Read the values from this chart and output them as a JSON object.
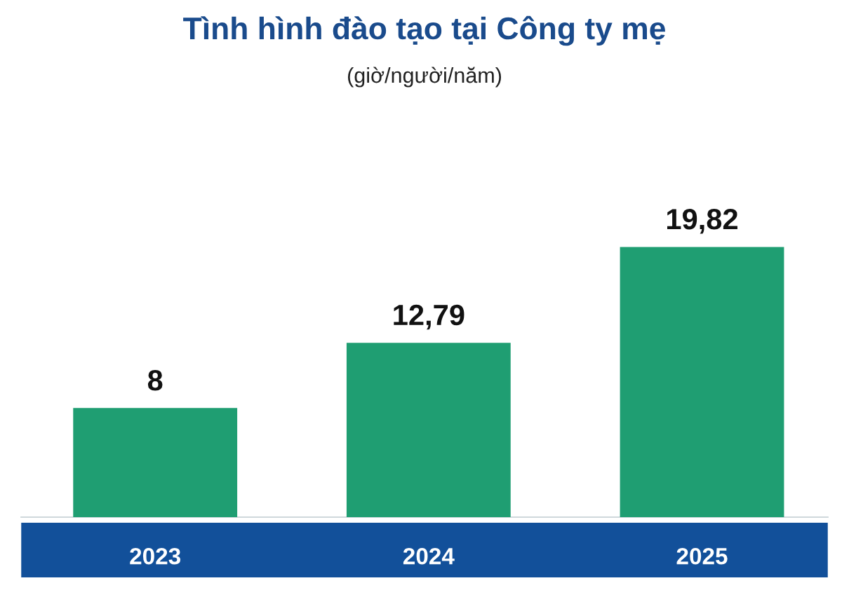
{
  "chart_data": {
    "type": "bar",
    "title": "Tình hình đào tạo tại Công ty mẹ",
    "subtitle": "(giờ/người/năm)",
    "categories": [
      "2023",
      "2024",
      "2025"
    ],
    "values": [
      8,
      12.79,
      19.82
    ],
    "value_labels": [
      "8",
      "12,79",
      "19,82"
    ],
    "color": "#1f9e72",
    "tick_labels": "x"
  }
}
